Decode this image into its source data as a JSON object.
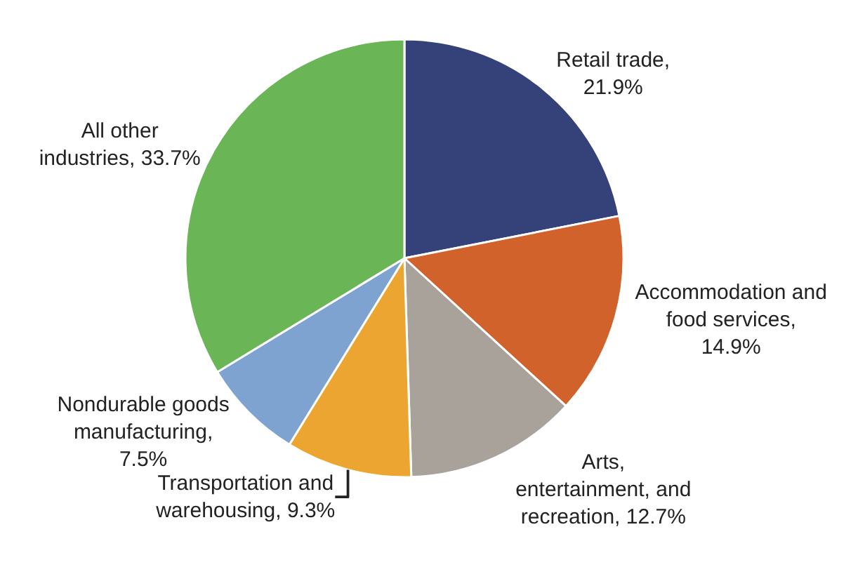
{
  "chart_data": {
    "type": "pie",
    "categories": [
      "Retail trade, 21.9%",
      "Accommodation and food services, 14.9%",
      "Arts, entertainment, and recreation, 12.7%",
      "Transportation and warehousing, 9.3%",
      "Nondurable goods manufacturing, 7.5%",
      "All other industries, 33.7%"
    ],
    "values": [
      21.9,
      14.9,
      12.7,
      9.3,
      7.5,
      33.7
    ],
    "colors": [
      "#35427a",
      "#d2622b",
      "#a8a29a",
      "#eda531",
      "#7fa3d1",
      "#6ab556"
    ],
    "legend": false
  }
}
